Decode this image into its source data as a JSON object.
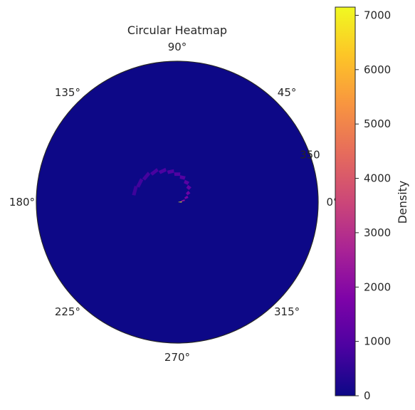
{
  "chart_data": {
    "type": "heatmap",
    "projection": "polar",
    "title": "Circular Heatmap",
    "angle_ticks": [
      "0°",
      "45°",
      "90°",
      "135°",
      "180°",
      "225°",
      "270°",
      "315°"
    ],
    "radial_tick_label": "350",
    "radial_tick_value": 350,
    "r_max": 400,
    "background_value": 0,
    "cells": [
      {
        "theta_deg": 2,
        "r": 8,
        "value": 7100
      },
      {
        "theta_deg": 15,
        "r": 17,
        "value": 2200
      },
      {
        "theta_deg": 27,
        "r": 29,
        "value": 1700
      },
      {
        "theta_deg": 40,
        "r": 40,
        "value": 1500
      },
      {
        "theta_deg": 52,
        "r": 53,
        "value": 1300
      },
      {
        "theta_deg": 65,
        "r": 62,
        "value": 1100
      },
      {
        "theta_deg": 78,
        "r": 72,
        "value": 1050
      },
      {
        "theta_deg": 90,
        "r": 80,
        "value": 1000
      },
      {
        "theta_deg": 102,
        "r": 89,
        "value": 950
      },
      {
        "theta_deg": 115,
        "r": 98,
        "value": 900
      },
      {
        "theta_deg": 127,
        "r": 108,
        "value": 850
      },
      {
        "theta_deg": 140,
        "r": 115,
        "value": 800
      },
      {
        "theta_deg": 153,
        "r": 120,
        "value": 750
      },
      {
        "theta_deg": 165,
        "r": 125,
        "value": 700
      }
    ],
    "colorbar": {
      "label": "Density",
      "colormap": "plasma",
      "min": 0,
      "max": 7150,
      "ticks": [
        0,
        1000,
        2000,
        3000,
        4000,
        5000,
        6000,
        7000
      ]
    }
  }
}
